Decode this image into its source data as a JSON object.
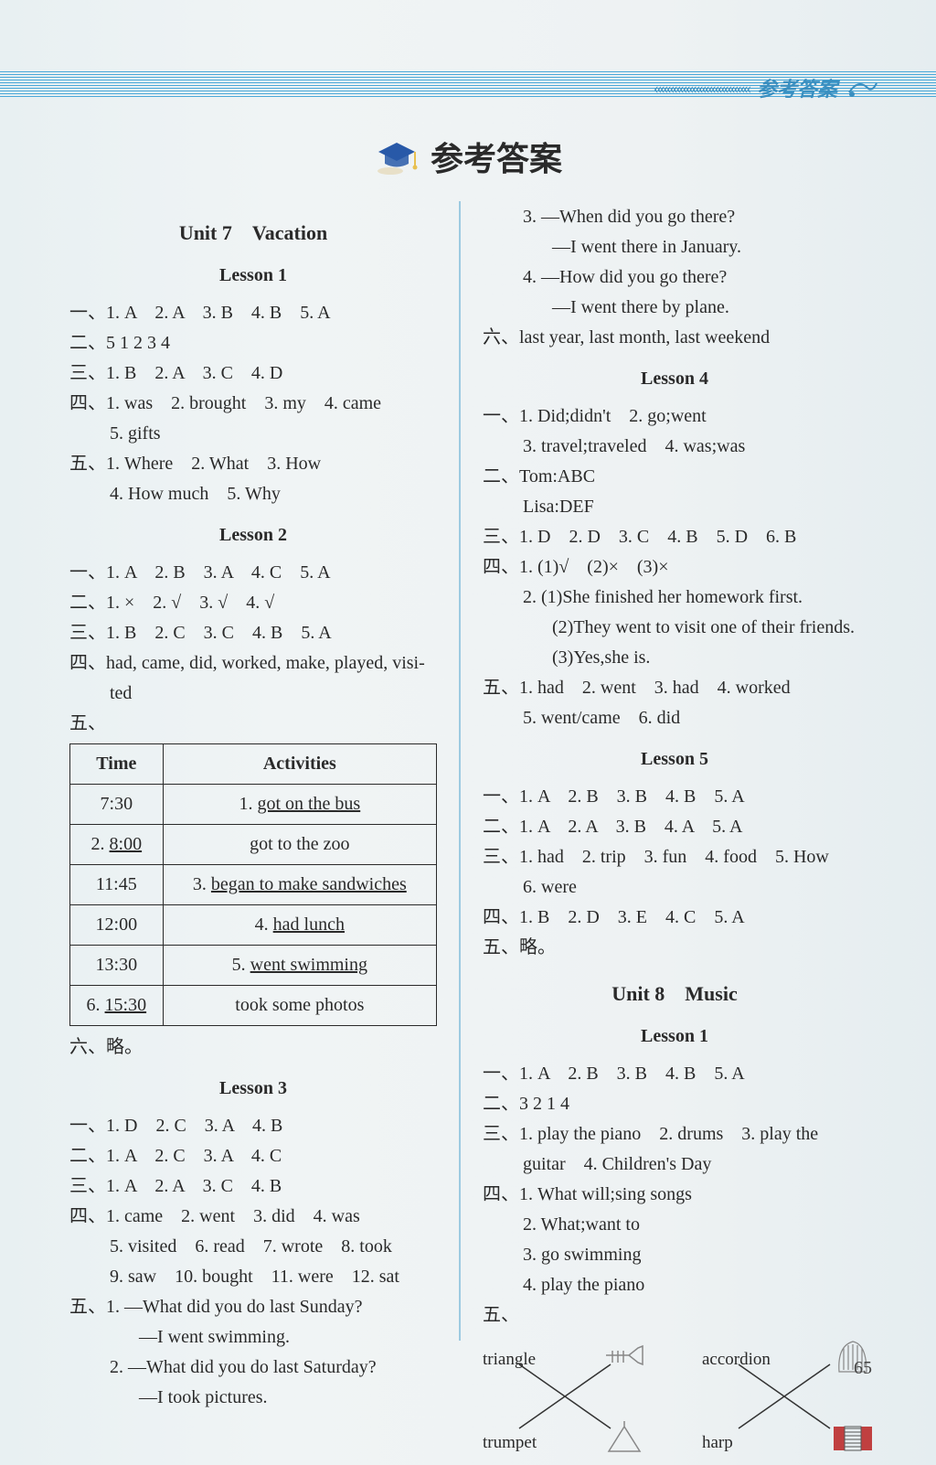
{
  "header": {
    "arrows": "«««««««««««««««",
    "label": "参考答案"
  },
  "page_title": "参考答案",
  "page_number": "65",
  "left": {
    "unit7_title": "Unit 7　Vacation",
    "lesson1": {
      "title": "Lesson 1",
      "l1": "一、1. A　2. A　3. B　4. B　5. A",
      "l2": "二、5 1 2 3 4",
      "l3": "三、1. B　2. A　3. C　4. D",
      "l4": "四、1. was　2. brought　3. my　4. came",
      "l4b": "5. gifts",
      "l5": "五、1. Where　2. What　3. How",
      "l5b": "4. How much　5. Why"
    },
    "lesson2": {
      "title": "Lesson 2",
      "l1": "一、1. A　2. B　3. A　4. C　5. A",
      "l2": "二、1. ×　2. √　3. √　4. √",
      "l3": "三、1. B　2. C　3. C　4. B　5. A",
      "l4": "四、had, came, did, worked, make, played, visi-",
      "l4b": "ted",
      "l5": "五、",
      "table": {
        "headers": [
          "Time",
          "Activities"
        ],
        "rows": [
          [
            "7:30",
            {
              "pre": "1. ",
              "u": "got on the bus"
            }
          ],
          [
            {
              "pre": "2. ",
              "u": "8:00"
            },
            "got to the zoo"
          ],
          [
            "11:45",
            {
              "pre": "3. ",
              "u": "began to make sandwiches"
            }
          ],
          [
            "12:00",
            {
              "pre": "4. ",
              "u": "had lunch"
            }
          ],
          [
            "13:30",
            {
              "pre": "5. ",
              "u": "went swimming"
            }
          ],
          [
            {
              "pre": "6. ",
              "u": "15:30"
            },
            "took some photos"
          ]
        ]
      },
      "l6": "六、略。"
    },
    "lesson3": {
      "title": "Lesson 3",
      "l1": "一、1. D　2. C　3. A　4. B",
      "l2": "二、1. A　2. C　3. A　4. C",
      "l3": "三、1. A　2. A　3. C　4. B",
      "l4": "四、1. came　2. went　3. did　4. was",
      "l4b": "5. visited　6. read　7. wrote　8. took",
      "l4c": "9. saw　10. bought　11. were　12. sat",
      "l5": "五、1. —What did you do last Sunday?",
      "l5b": "—I went swimming.",
      "l6": "2. —What did you do last Saturday?",
      "l6b": "—I took pictures."
    }
  },
  "right": {
    "lesson3cont": {
      "l1": "3. —When did you go there?",
      "l1b": "—I went there in January.",
      "l2": "4. —How did you go there?",
      "l2b": "—I went there by plane.",
      "l3": "六、last year, last month, last weekend"
    },
    "lesson4": {
      "title": "Lesson 4",
      "l1": "一、1. Did;didn't　2. go;went",
      "l1b": "3. travel;traveled　4. was;was",
      "l2": "二、Tom:ABC",
      "l2b": "Lisa:DEF",
      "l3": "三、1. D　2. D　3. C　4. B　5. D　6. B",
      "l4": "四、1. (1)√　(2)×　(3)×",
      "l4b": "2. (1)She finished her homework first.",
      "l4c": "(2)They went to visit one of their friends.",
      "l4d": "(3)Yes,she is.",
      "l5": "五、1. had　2. went　3. had　4. worked",
      "l5b": "5. went/came　6. did"
    },
    "lesson5": {
      "title": "Lesson 5",
      "l1": "一、1. A　2. B　3. B　4. B　5. A",
      "l2": "二、1. A　2. A　3. B　4. A　5. A",
      "l3": "三、1. had　2. trip　3. fun　4. food　5. How",
      "l3b": "6. were",
      "l4": "四、1. B　2. D　3. E　4. C　5. A",
      "l5": "五、略。"
    },
    "unit8_title": "Unit 8　Music",
    "u8lesson1": {
      "title": "Lesson 1",
      "l1": "一、1. A　2. B　3. B　4. B　5. A",
      "l2": "二、3 2 1 4",
      "l3": "三、1. play the piano　2. drums　3. play the",
      "l3b": "guitar　4. Children's Day",
      "l4": "四、1. What will;sing songs",
      "l4b": "2. What;want to",
      "l4c": "3. go swimming",
      "l4d": "4. play the piano",
      "l5": "五、",
      "diagram": {
        "pair1": {
          "tl": "triangle",
          "bl": "trumpet"
        },
        "pair2": {
          "tl": "accordion",
          "bl": "harp"
        }
      }
    }
  }
}
